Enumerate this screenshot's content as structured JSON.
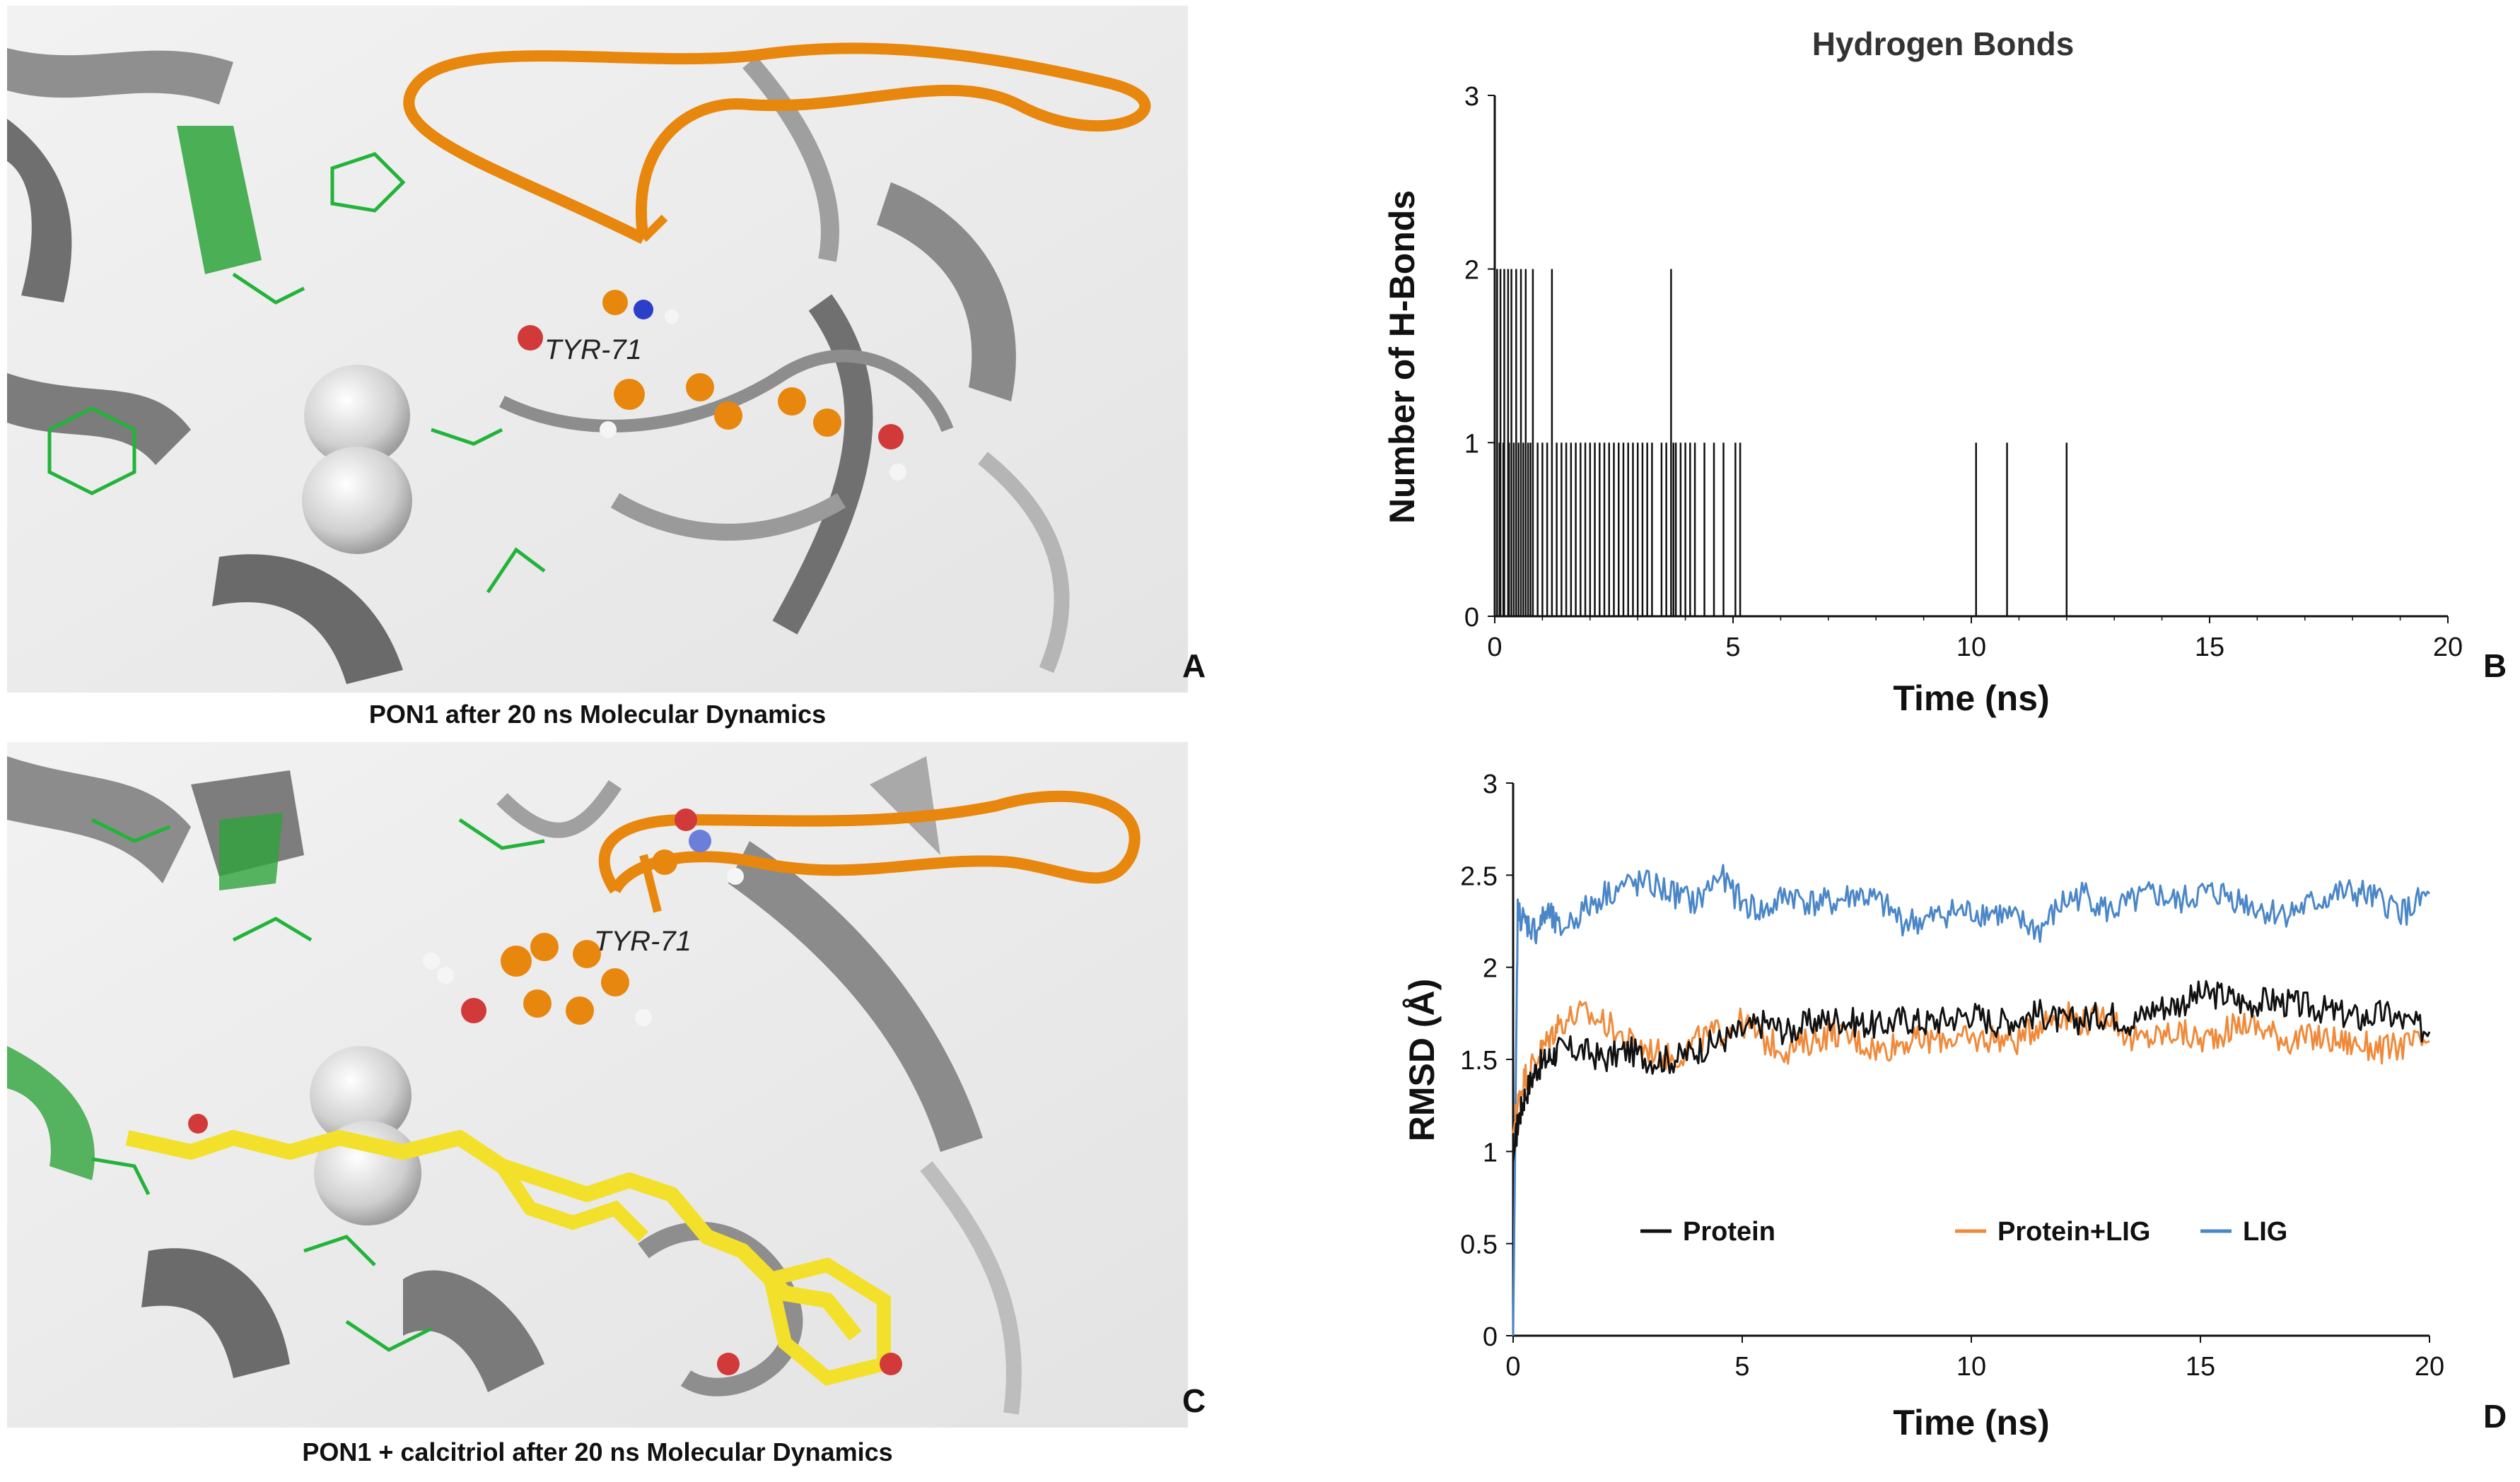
{
  "figure": {
    "panel_a": {
      "letter": "A",
      "caption": "PON1 after 20 ns Molecular Dynamics",
      "residue_label": "TYR-71"
    },
    "panel_b_letter": "B",
    "panel_c": {
      "letter": "C",
      "caption": "PON1 +  calcitriol after 20 ns Molecular Dynamics",
      "residue_label": "TYR-71"
    },
    "panel_d_letter": "D",
    "colors": {
      "cartoon_gray": "#9a9a9a",
      "loop_orange": "#e8870e",
      "ligand_yellow": "#f2e02a",
      "residue_green": "#22b33a",
      "oxygen_red": "#d23a3a",
      "nitrogen_blue": "#2b3fc8",
      "protein_black": "#111111",
      "protein_lig_orange": "#f08a3a",
      "lig_blue": "#4a86c8"
    }
  },
  "chart_data": [
    {
      "type": "bar",
      "title": "Hydrogen Bonds",
      "xlabel": "Time (ns)",
      "ylabel": "Number of H-Bonds",
      "xlim": [
        0,
        20
      ],
      "ylim": [
        0,
        3
      ],
      "x_ticks": [
        "0",
        "5",
        "10",
        "15",
        "20"
      ],
      "y_ticks": [
        "0",
        "1",
        "2",
        "3"
      ],
      "events": [
        {
          "x": 0.05,
          "y": 2
        },
        {
          "x": 0.12,
          "y": 2
        },
        {
          "x": 0.2,
          "y": 2
        },
        {
          "x": 0.28,
          "y": 2
        },
        {
          "x": 0.35,
          "y": 2
        },
        {
          "x": 0.45,
          "y": 2
        },
        {
          "x": 0.55,
          "y": 2
        },
        {
          "x": 0.65,
          "y": 2
        },
        {
          "x": 0.8,
          "y": 2
        },
        {
          "x": 1.2,
          "y": 2
        },
        {
          "x": 3.7,
          "y": 2
        },
        {
          "x": 0.1,
          "y": 1
        },
        {
          "x": 0.18,
          "y": 1
        },
        {
          "x": 0.3,
          "y": 1
        },
        {
          "x": 0.4,
          "y": 1
        },
        {
          "x": 0.5,
          "y": 1
        },
        {
          "x": 0.6,
          "y": 1
        },
        {
          "x": 0.7,
          "y": 1
        },
        {
          "x": 0.75,
          "y": 1
        },
        {
          "x": 0.9,
          "y": 1
        },
        {
          "x": 1.0,
          "y": 1
        },
        {
          "x": 1.1,
          "y": 1
        },
        {
          "x": 1.3,
          "y": 1
        },
        {
          "x": 1.4,
          "y": 1
        },
        {
          "x": 1.5,
          "y": 1
        },
        {
          "x": 1.6,
          "y": 1
        },
        {
          "x": 1.7,
          "y": 1
        },
        {
          "x": 1.8,
          "y": 1
        },
        {
          "x": 1.9,
          "y": 1
        },
        {
          "x": 2.0,
          "y": 1
        },
        {
          "x": 2.1,
          "y": 1
        },
        {
          "x": 2.2,
          "y": 1
        },
        {
          "x": 2.3,
          "y": 1
        },
        {
          "x": 2.4,
          "y": 1
        },
        {
          "x": 2.5,
          "y": 1
        },
        {
          "x": 2.6,
          "y": 1
        },
        {
          "x": 2.7,
          "y": 1
        },
        {
          "x": 2.8,
          "y": 1
        },
        {
          "x": 2.9,
          "y": 1
        },
        {
          "x": 3.0,
          "y": 1
        },
        {
          "x": 3.1,
          "y": 1
        },
        {
          "x": 3.2,
          "y": 1
        },
        {
          "x": 3.3,
          "y": 1
        },
        {
          "x": 3.5,
          "y": 1
        },
        {
          "x": 3.6,
          "y": 1
        },
        {
          "x": 3.75,
          "y": 1
        },
        {
          "x": 3.8,
          "y": 1
        },
        {
          "x": 3.9,
          "y": 1
        },
        {
          "x": 4.0,
          "y": 1
        },
        {
          "x": 4.1,
          "y": 1
        },
        {
          "x": 4.2,
          "y": 1
        },
        {
          "x": 4.4,
          "y": 1
        },
        {
          "x": 4.6,
          "y": 1
        },
        {
          "x": 4.8,
          "y": 1
        },
        {
          "x": 5.05,
          "y": 1
        },
        {
          "x": 5.15,
          "y": 1
        },
        {
          "x": 10.1,
          "y": 1
        },
        {
          "x": 10.75,
          "y": 1
        },
        {
          "x": 12.0,
          "y": 1
        }
      ]
    },
    {
      "type": "line",
      "title": "",
      "xlabel": "Time (ns)",
      "ylabel": "RMSD (Å)",
      "xlim": [
        0,
        20
      ],
      "ylim": [
        0,
        3
      ],
      "x_ticks": [
        "0",
        "5",
        "10",
        "15",
        "20"
      ],
      "y_ticks": [
        "0",
        "0.5",
        "1",
        "1.5",
        "2",
        "2.5",
        "3"
      ],
      "legend_position": "bottom-center",
      "x": [
        0,
        0.1,
        0.25,
        0.5,
        0.75,
        1,
        1.5,
        2,
        2.5,
        3,
        3.5,
        4,
        4.5,
        5,
        5.5,
        6,
        6.5,
        7,
        7.5,
        8,
        8.5,
        9,
        9.5,
        10,
        10.5,
        11,
        11.5,
        12,
        12.5,
        13,
        13.5,
        14,
        14.5,
        15,
        15.5,
        16,
        16.5,
        17,
        17.5,
        18,
        18.5,
        19,
        19.5,
        20
      ],
      "series": [
        {
          "name": "Protein",
          "color": "#111111",
          "values": [
            0.95,
            1.15,
            1.3,
            1.45,
            1.5,
            1.55,
            1.55,
            1.5,
            1.55,
            1.5,
            1.5,
            1.55,
            1.6,
            1.65,
            1.7,
            1.65,
            1.7,
            1.72,
            1.7,
            1.68,
            1.72,
            1.7,
            1.72,
            1.75,
            1.7,
            1.72,
            1.75,
            1.7,
            1.72,
            1.75,
            1.7,
            1.78,
            1.8,
            1.85,
            1.85,
            1.8,
            1.82,
            1.8,
            1.78,
            1.75,
            1.72,
            1.75,
            1.7,
            1.65
          ]
        },
        {
          "name": "Protein+LIG",
          "color": "#f08a3a",
          "values": [
            1.1,
            1.25,
            1.4,
            1.5,
            1.6,
            1.7,
            1.75,
            1.7,
            1.6,
            1.55,
            1.5,
            1.6,
            1.65,
            1.7,
            1.6,
            1.55,
            1.6,
            1.65,
            1.6,
            1.55,
            1.6,
            1.6,
            1.62,
            1.6,
            1.62,
            1.6,
            1.7,
            1.75,
            1.7,
            1.75,
            1.6,
            1.62,
            1.65,
            1.6,
            1.65,
            1.7,
            1.65,
            1.6,
            1.62,
            1.6,
            1.58,
            1.55,
            1.58,
            1.6
          ]
        },
        {
          "name": "LIG",
          "color": "#4a86c8",
          "values": [
            0.0,
            2.3,
            2.25,
            2.2,
            2.3,
            2.2,
            2.3,
            2.4,
            2.45,
            2.45,
            2.4,
            2.35,
            2.5,
            2.35,
            2.3,
            2.4,
            2.35,
            2.35,
            2.4,
            2.35,
            2.25,
            2.25,
            2.3,
            2.3,
            2.3,
            2.25,
            2.2,
            2.35,
            2.4,
            2.3,
            2.35,
            2.4,
            2.35,
            2.4,
            2.4,
            2.35,
            2.3,
            2.3,
            2.35,
            2.4,
            2.4,
            2.35,
            2.3,
            2.4
          ]
        }
      ]
    }
  ]
}
